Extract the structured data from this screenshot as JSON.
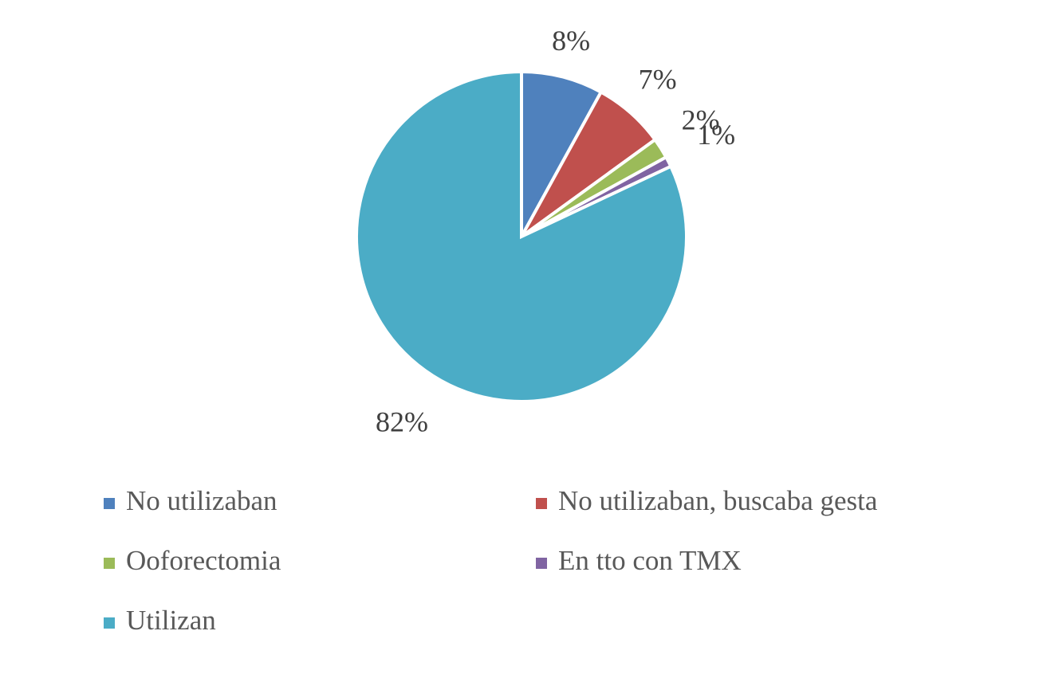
{
  "chart_data": {
    "type": "pie",
    "categories": [
      "No utilizaban",
      "No utilizaban, buscaba gesta",
      "Ooforectomia",
      "En tto con TMX",
      "Utilizan"
    ],
    "values": [
      8,
      7,
      2,
      1,
      82
    ],
    "value_labels": [
      "8%",
      "7%",
      "2%",
      "1%",
      "82%"
    ],
    "colors": [
      "#4f81bd",
      "#c0504d",
      "#9bbb59",
      "#8064a2",
      "#4bacc6"
    ],
    "legend": "bottom"
  }
}
